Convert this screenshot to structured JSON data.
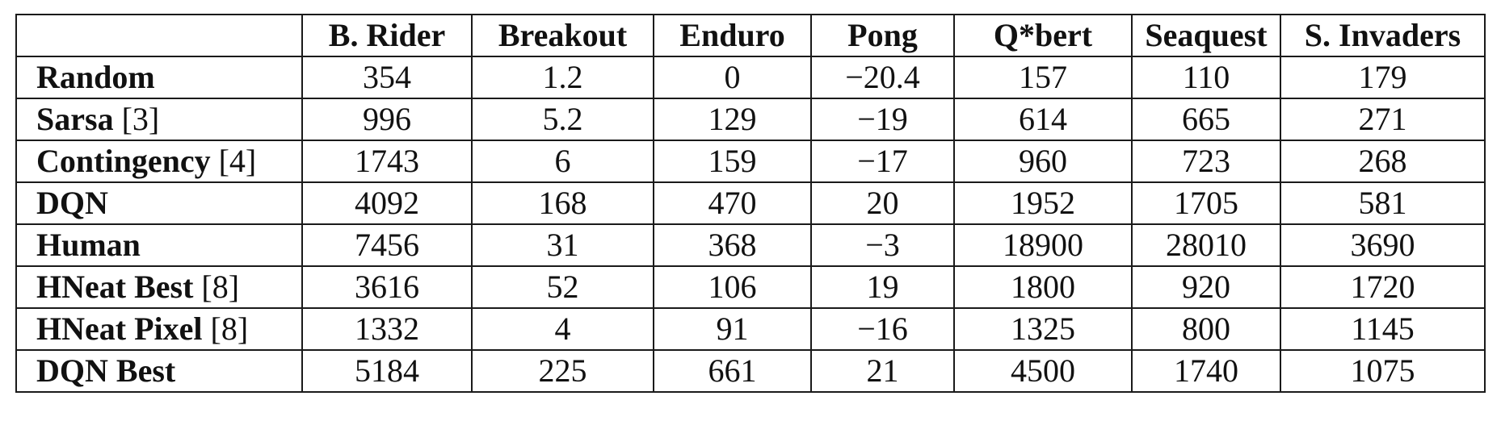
{
  "chart_data": {
    "type": "table",
    "columns": [
      "",
      "B. Rider",
      "Breakout",
      "Enduro",
      "Pong",
      "Q*bert",
      "Seaquest",
      "S. Invaders"
    ],
    "rows": [
      {
        "method": "Random",
        "cite": "",
        "group": 1,
        "values": [
          "354",
          "1.2",
          "0",
          "−20.4",
          "157",
          "110",
          "179"
        ],
        "bold": [
          false,
          false,
          false,
          false,
          false,
          false,
          false
        ]
      },
      {
        "method": "Sarsa",
        "cite": "[3]",
        "group": 1,
        "values": [
          "996",
          "5.2",
          "129",
          "−19",
          "614",
          "665",
          "271"
        ],
        "bold": [
          false,
          false,
          false,
          false,
          false,
          false,
          false
        ]
      },
      {
        "method": "Contingency",
        "cite": "[4]",
        "group": 1,
        "values": [
          "1743",
          "6",
          "159",
          "−17",
          "960",
          "723",
          "268"
        ],
        "bold": [
          false,
          false,
          false,
          false,
          false,
          false,
          false
        ]
      },
      {
        "method": "DQN",
        "cite": "",
        "group": 1,
        "values": [
          "4092",
          "168",
          "470",
          "20",
          "1952",
          "1705",
          "581"
        ],
        "bold": [
          true,
          true,
          true,
          true,
          true,
          true,
          true
        ]
      },
      {
        "method": "Human",
        "cite": "",
        "group": 1,
        "values": [
          "7456",
          "31",
          "368",
          "−3",
          "18900",
          "28010",
          "3690"
        ],
        "bold": [
          false,
          false,
          false,
          false,
          false,
          false,
          false
        ]
      },
      {
        "method": "HNeat Best",
        "cite": "[8]",
        "group": 2,
        "values": [
          "3616",
          "52",
          "106",
          "19",
          "1800",
          "920",
          "1720"
        ],
        "bold": [
          false,
          false,
          false,
          false,
          false,
          false,
          true
        ]
      },
      {
        "method": "HNeat Pixel",
        "cite": "[8]",
        "group": 2,
        "values": [
          "1332",
          "4",
          "91",
          "−16",
          "1325",
          "800",
          "1145"
        ],
        "bold": [
          false,
          false,
          false,
          false,
          false,
          false,
          false
        ]
      },
      {
        "method": "DQN Best",
        "cite": "",
        "group": 2,
        "values": [
          "5184",
          "225",
          "661",
          "21",
          "4500",
          "1740",
          "1075"
        ],
        "bold": [
          true,
          true,
          true,
          true,
          true,
          true,
          false
        ]
      }
    ]
  }
}
